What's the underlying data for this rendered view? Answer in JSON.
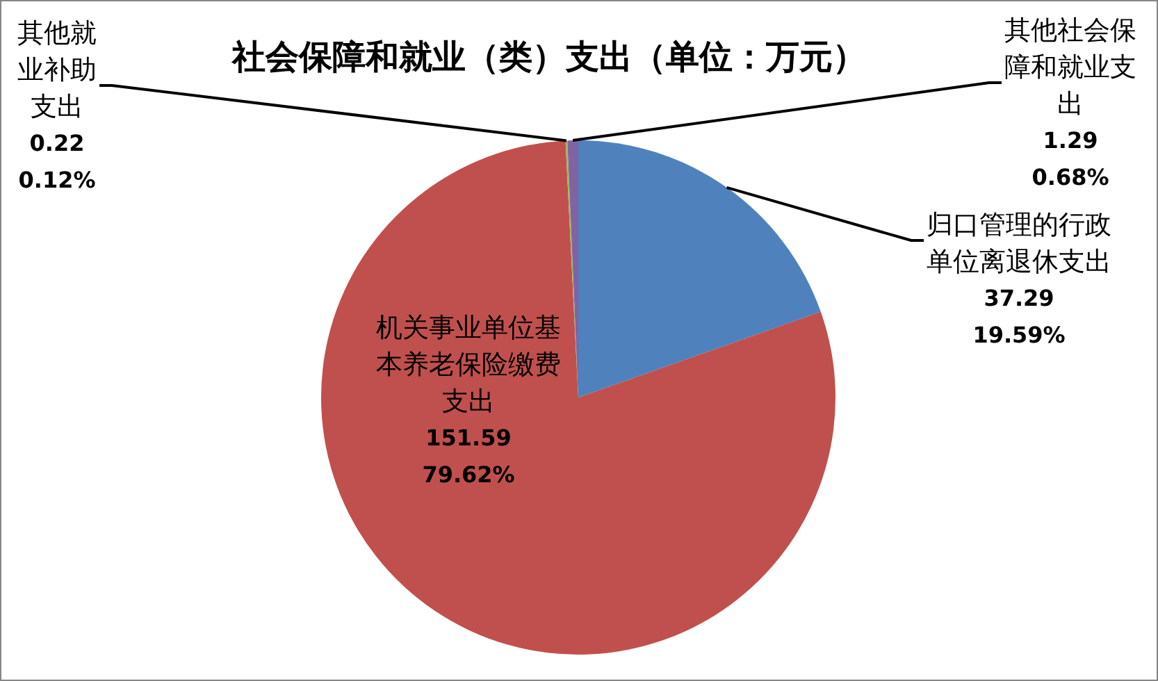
{
  "chart_data": {
    "type": "pie",
    "title": "社会保障和就业（类）支出（单位：万元）",
    "categories": [
      "归口管理的行政单位离退休支出",
      "机关事业单位基本养老保险缴费支出",
      "其他就业补助支出",
      "其他社会保障和就业支出"
    ],
    "values": [
      37.29,
      151.59,
      0.22,
      1.29
    ],
    "colors": [
      "#4f81bd",
      "#c0504d",
      "#9bbb59",
      "#8064a2"
    ],
    "value_labels": [
      "37.29\n19.59%",
      "151.59\n79.62%",
      "0.22\n0.12%",
      "1.29\n0.68%"
    ],
    "legend": false
  }
}
